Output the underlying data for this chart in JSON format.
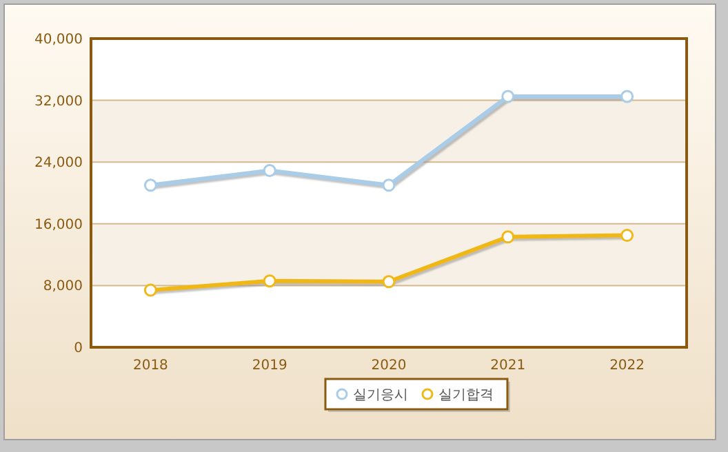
{
  "chart_data": {
    "type": "line",
    "categories": [
      "2018",
      "2019",
      "2020",
      "2021",
      "2022"
    ],
    "series": [
      {
        "name": "실기응시",
        "color": "#a9cde8",
        "values": [
          21000,
          22900,
          21000,
          32500,
          32500
        ]
      },
      {
        "name": "실기합격",
        "color": "#f0b818",
        "values": [
          7400,
          8600,
          8500,
          14300,
          14500
        ]
      }
    ],
    "ylim": [
      0,
      40000
    ],
    "yticks": [
      {
        "value": 0,
        "label": "0"
      },
      {
        "value": 8000,
        "label": "8,000"
      },
      {
        "value": 16000,
        "label": "16,000"
      },
      {
        "value": 24000,
        "label": "24,000"
      },
      {
        "value": 32000,
        "label": "32,000"
      },
      {
        "value": 40000,
        "label": "40,000"
      }
    ],
    "grid": "y",
    "legend": "bottom",
    "marker": "circle",
    "line_style": "solid"
  }
}
